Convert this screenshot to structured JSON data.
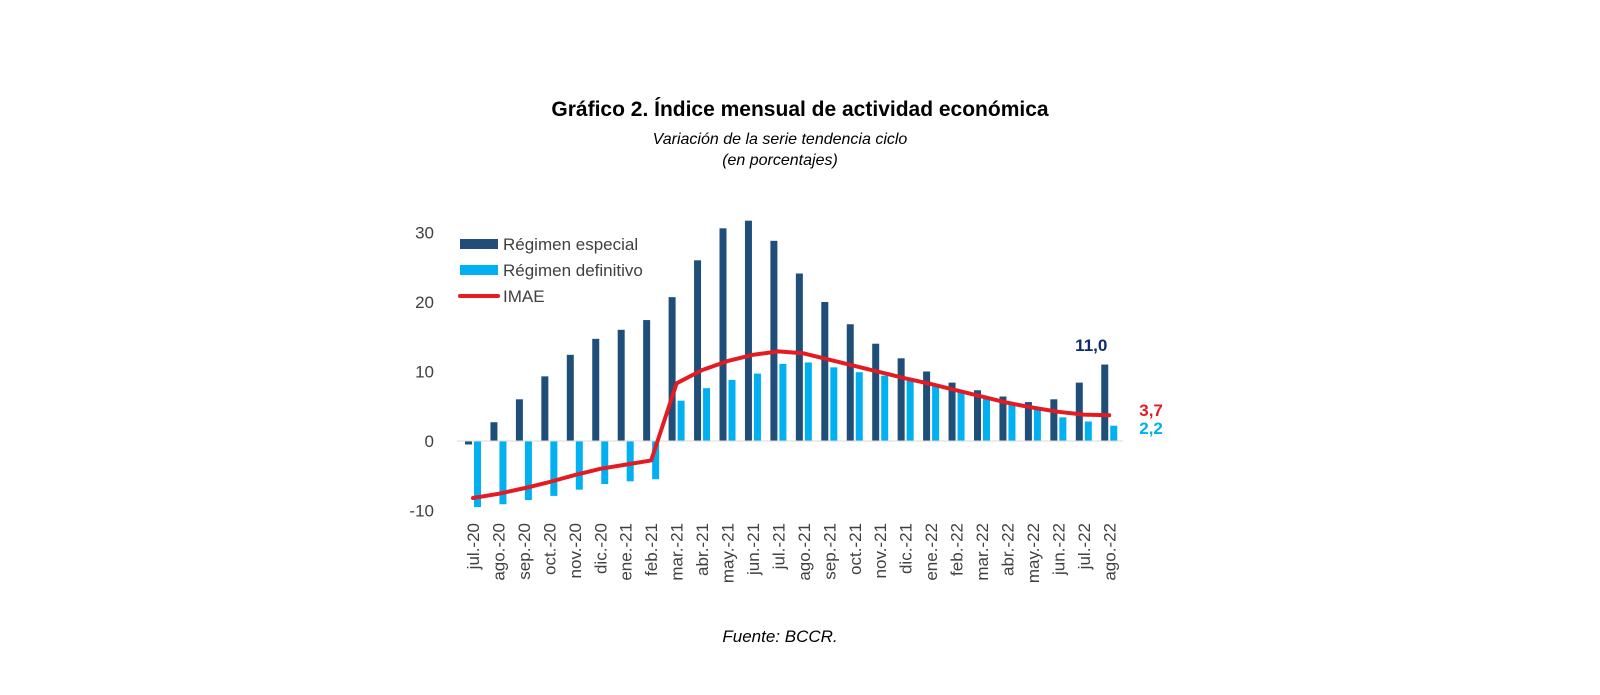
{
  "chart_data": {
    "type": "bar",
    "title": "Gráfico 2.  Índice mensual de actividad económica",
    "subtitle": "Variación de la serie tendencia ciclo",
    "subtitle2": "(en porcentajes)",
    "source": "Fuente: BCCR.",
    "categories": [
      "jul.-20",
      "ago.-20",
      "sep.-20",
      "oct.-20",
      "nov.-20",
      "dic.-20",
      "ene.-21",
      "feb.-21",
      "mar.-21",
      "abr.-21",
      "may.-21",
      "jun.-21",
      "jul.-21",
      "ago.-21",
      "sep.-21",
      "oct.-21",
      "nov.-21",
      "dic.-21",
      "ene.-22",
      "feb.-22",
      "mar.-22",
      "abr.-22",
      "may.-22",
      "jun.-22",
      "jul.-22",
      "ago.-22"
    ],
    "series": [
      {
        "name": "Régimen especial",
        "kind": "bar",
        "color": "#1f4e79",
        "values": [
          -0.5,
          2.7,
          6.0,
          9.3,
          12.4,
          14.7,
          16.0,
          17.4,
          20.7,
          26.0,
          30.6,
          31.7,
          28.8,
          24.1,
          20.0,
          16.8,
          14.0,
          11.9,
          10.0,
          8.4,
          7.3,
          6.4,
          5.6,
          6.0,
          8.4,
          11.0
        ]
      },
      {
        "name": "Régimen definitivo",
        "kind": "bar",
        "color": "#00b0f0",
        "values": [
          -9.5,
          -9.1,
          -8.5,
          -7.9,
          -7.0,
          -6.2,
          -5.8,
          -5.5,
          5.8,
          7.6,
          8.8,
          9.7,
          11.1,
          11.3,
          10.6,
          9.9,
          9.4,
          8.8,
          8.2,
          7.3,
          6.3,
          5.3,
          4.6,
          3.4,
          2.8,
          2.2
        ]
      },
      {
        "name": "IMAE",
        "kind": "line",
        "color": "#e31b23",
        "values": [
          -8.2,
          -7.6,
          -6.8,
          -5.9,
          -4.9,
          -4.0,
          -3.4,
          -2.8,
          8.3,
          10.2,
          11.5,
          12.4,
          12.9,
          12.6,
          11.7,
          10.8,
          9.9,
          9.0,
          8.2,
          7.3,
          6.4,
          5.5,
          4.8,
          4.2,
          3.8,
          3.7
        ]
      }
    ],
    "ylim": [
      -10,
      30
    ],
    "yticks": [
      -10,
      0,
      10,
      20,
      30
    ],
    "legend_position": "top-left",
    "grid": false,
    "callouts": [
      {
        "series": "Régimen especial",
        "text": "11,0",
        "color": "#0d2a6b"
      },
      {
        "series": "IMAE",
        "text": "3,7",
        "color": "#e31b23"
      },
      {
        "series": "Régimen definitivo",
        "text": "2,2",
        "color": "#00b0f0"
      }
    ]
  }
}
